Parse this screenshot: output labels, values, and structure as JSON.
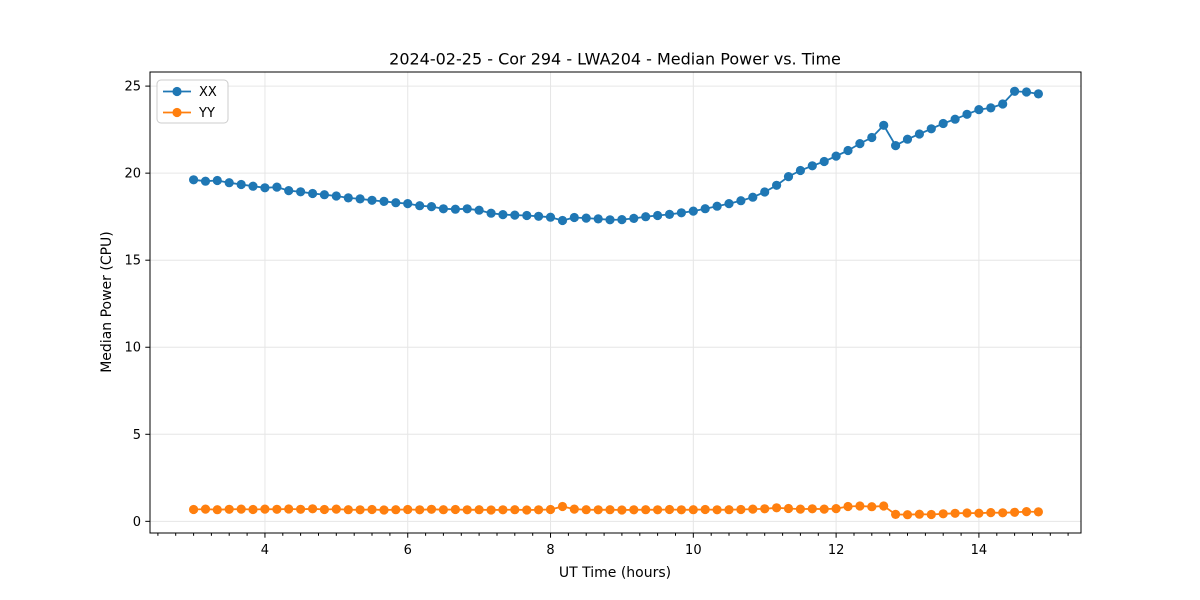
{
  "chart_data": {
    "type": "line",
    "title": "2024-02-25 - Cor 294 - LWA204 - Median Power vs. Time",
    "xlabel": "UT Time (hours)",
    "ylabel": "Median Power (CPU)",
    "xlim": [
      2.39,
      15.43
    ],
    "ylim": [
      -0.67,
      25.81
    ],
    "x_major_ticks": [
      4,
      6,
      8,
      10,
      12,
      14
    ],
    "x_minor_tick_step": 0.25,
    "y_major_ticks": [
      0,
      5,
      10,
      15,
      20,
      25
    ],
    "grid": true,
    "legend_position": "upper-left",
    "marker": "circle",
    "x": [
      3.0,
      3.167,
      3.333,
      3.5,
      3.667,
      3.833,
      4.0,
      4.167,
      4.333,
      4.5,
      4.667,
      4.833,
      5.0,
      5.167,
      5.333,
      5.5,
      5.667,
      5.833,
      6.0,
      6.167,
      6.333,
      6.5,
      6.667,
      6.833,
      7.0,
      7.167,
      7.333,
      7.5,
      7.667,
      7.833,
      8.0,
      8.167,
      8.333,
      8.5,
      8.667,
      8.833,
      9.0,
      9.167,
      9.333,
      9.5,
      9.667,
      9.833,
      10.0,
      10.167,
      10.333,
      10.5,
      10.667,
      10.833,
      11.0,
      11.167,
      11.333,
      11.5,
      11.667,
      11.833,
      12.0,
      12.167,
      12.333,
      12.5,
      12.667,
      12.833,
      13.0,
      13.167,
      13.333,
      13.5,
      13.667,
      13.833,
      14.0,
      14.167,
      14.333,
      14.5,
      14.667,
      14.833
    ],
    "series": [
      {
        "name": "XX",
        "color": "#1f77b4",
        "values": [
          19.62,
          19.54,
          19.58,
          19.45,
          19.35,
          19.25,
          19.16,
          19.2,
          19.0,
          18.93,
          18.83,
          18.76,
          18.69,
          18.58,
          18.52,
          18.44,
          18.38,
          18.3,
          18.25,
          18.13,
          18.08,
          17.95,
          17.93,
          17.95,
          17.87,
          17.7,
          17.62,
          17.59,
          17.57,
          17.52,
          17.47,
          17.28,
          17.45,
          17.42,
          17.37,
          17.32,
          17.33,
          17.4,
          17.5,
          17.57,
          17.63,
          17.72,
          17.82,
          17.96,
          18.1,
          18.25,
          18.42,
          18.62,
          18.92,
          19.3,
          19.8,
          20.15,
          20.42,
          20.67,
          20.98,
          21.3,
          21.7,
          22.05,
          22.75,
          21.58,
          21.95,
          22.25,
          22.55,
          22.85,
          23.1,
          23.38,
          23.65,
          23.75,
          23.97,
          24.7,
          24.66,
          24.55
        ]
      },
      {
        "name": "YY",
        "color": "#ff7f0e",
        "values": [
          0.68,
          0.7,
          0.67,
          0.69,
          0.7,
          0.68,
          0.7,
          0.69,
          0.71,
          0.69,
          0.72,
          0.68,
          0.7,
          0.67,
          0.66,
          0.68,
          0.65,
          0.67,
          0.68,
          0.66,
          0.69,
          0.67,
          0.68,
          0.66,
          0.67,
          0.65,
          0.66,
          0.67,
          0.65,
          0.66,
          0.68,
          0.85,
          0.7,
          0.67,
          0.66,
          0.67,
          0.65,
          0.66,
          0.67,
          0.66,
          0.68,
          0.66,
          0.67,
          0.68,
          0.66,
          0.67,
          0.68,
          0.7,
          0.72,
          0.78,
          0.74,
          0.7,
          0.72,
          0.7,
          0.73,
          0.85,
          0.88,
          0.84,
          0.88,
          0.4,
          0.38,
          0.41,
          0.39,
          0.43,
          0.46,
          0.48,
          0.47,
          0.5,
          0.49,
          0.52,
          0.56,
          0.54
        ]
      }
    ]
  },
  "colors": {
    "background": "#ffffff",
    "grid": "#e6e6e6",
    "spine": "#000000",
    "tick": "#000000",
    "text": "#000000",
    "legend_border": "#cccccc",
    "legend_background": "#ffffff"
  }
}
